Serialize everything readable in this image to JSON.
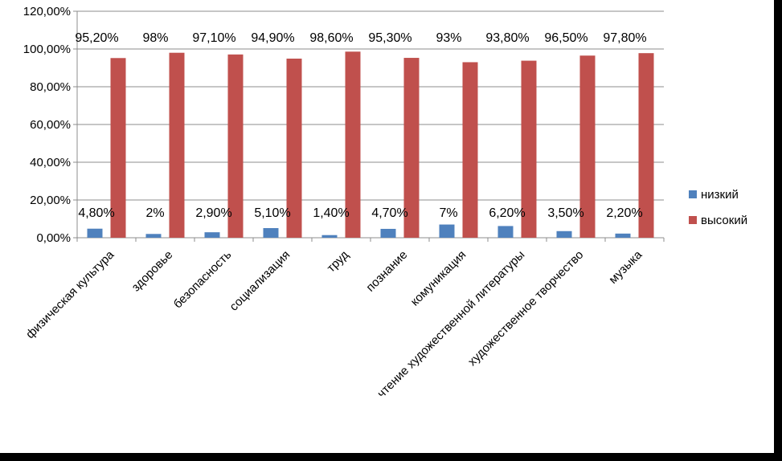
{
  "chart_data": {
    "type": "bar",
    "categories": [
      "физическая культура",
      "здоровье",
      "безопасность",
      "социализация",
      "труд",
      "познание",
      "комуникация",
      "чтение художественной литературы",
      "художественное творчество",
      "музыка"
    ],
    "series": [
      {
        "name": "низкий",
        "color": "#4F81BD",
        "values": [
          4.8,
          2,
          2.9,
          5.1,
          1.4,
          4.7,
          7,
          6.2,
          3.5,
          2.2
        ],
        "labels": [
          "4,80%",
          "2%",
          "2,90%",
          "5,10%",
          "1,40%",
          "4,70%",
          "7%",
          "6,20%",
          "3,50%",
          "2,20%"
        ]
      },
      {
        "name": "высокий",
        "color": "#C0504D",
        "values": [
          95.2,
          98,
          97.1,
          94.9,
          98.6,
          95.3,
          93,
          93.8,
          96.5,
          97.8
        ],
        "labels": [
          "95,20%",
          "98%",
          "97,10%",
          "94,90%",
          "98,60%",
          "95,30%",
          "93%",
          "93,80%",
          "96,50%",
          "97,80%"
        ]
      }
    ],
    "ylim": [
      0,
      120
    ],
    "yticks": [
      "0,00%",
      "20,00%",
      "40,00%",
      "60,00%",
      "80,00%",
      "100,00%",
      "120,00%"
    ],
    "grid": true,
    "legend_position": "right"
  }
}
